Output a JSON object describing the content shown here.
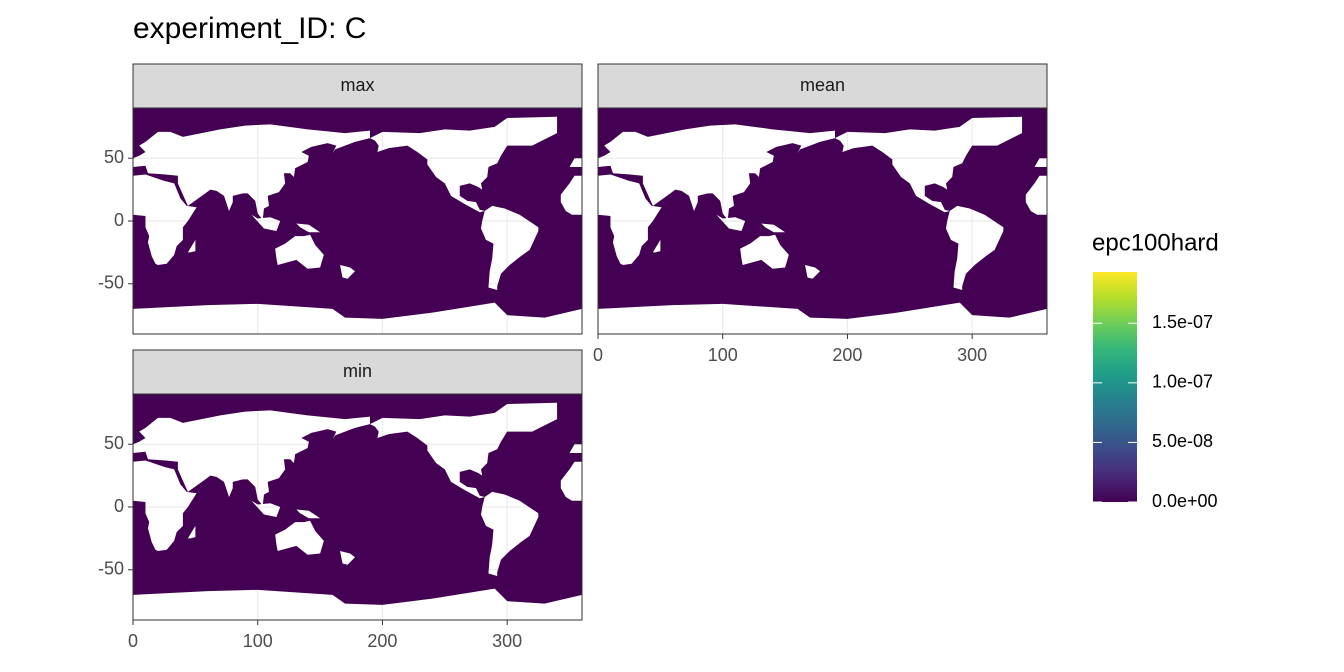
{
  "chart_data": {
    "type": "map",
    "title": "experiment_ID: C",
    "facets": [
      "max",
      "mean",
      "min"
    ],
    "xlim": [
      0,
      360
    ],
    "ylim": [
      -90,
      90
    ],
    "xticks": [
      0,
      100,
      200,
      300
    ],
    "yticks": [
      -50,
      0,
      50
    ],
    "grid": true,
    "legend": {
      "title": "epc100hard",
      "position": "right",
      "limits": [
        0,
        1.93e-07
      ],
      "ticks": [
        {
          "value": 0,
          "label": "0.0e+00"
        },
        {
          "value": 5e-08,
          "label": "5.0e-08"
        },
        {
          "value": 1e-07,
          "label": "1.0e-07"
        },
        {
          "value": 1.5e-07,
          "label": "1.5e-07"
        }
      ],
      "colors": [
        "#440154",
        "#482878",
        "#3e4a89",
        "#31688e",
        "#26828e",
        "#1f9e89",
        "#35b779",
        "#6ece58",
        "#b5de2b",
        "#fde725"
      ]
    }
  }
}
